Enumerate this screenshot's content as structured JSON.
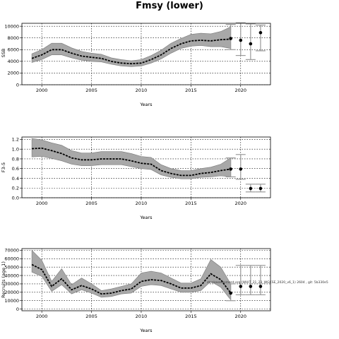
{
  "title": "Fmsy (lower)",
  "annotation": "stockassessment.org  (WHIT_21_23_WGCSE_2020_v6_1)  2604 , git: 5b330e5",
  "chart_data": [
    {
      "type": "line",
      "xlabel": "Years",
      "ylabel": "SSB",
      "xlim": [
        1998,
        2023
      ],
      "ylim": [
        0,
        10500
      ],
      "xticks": [
        2000,
        2005,
        2010,
        2015,
        2020
      ],
      "yticks": [
        0,
        2000,
        4000,
        6000,
        8000,
        10000
      ],
      "grid": true,
      "series": [
        {
          "x": [
            1999,
            2000,
            2001,
            2002,
            2003,
            2004,
            2005,
            2006,
            2007,
            2008,
            2009,
            2010,
            2011,
            2012,
            2013,
            2014,
            2015,
            2016,
            2017,
            2018,
            2019
          ],
          "values": [
            4500,
            5100,
            6000,
            6000,
            5400,
            4900,
            4700,
            4500,
            4000,
            3700,
            3600,
            3700,
            4300,
            5100,
            6200,
            7000,
            7500,
            7600,
            7500,
            7700,
            7800
          ],
          "lower": [
            3800,
            4300,
            5100,
            5100,
            4600,
            4200,
            4000,
            3900,
            3500,
            3200,
            3100,
            3200,
            3700,
            4400,
            5400,
            6200,
            6600,
            6700,
            6500,
            6500,
            6200
          ],
          "upper": [
            5300,
            6000,
            7100,
            7100,
            6300,
            5700,
            5400,
            5200,
            4600,
            4300,
            4100,
            4300,
            5000,
            5900,
            7100,
            7900,
            8600,
            8800,
            8700,
            9100,
            9900
          ]
        }
      ],
      "forecast": [
        {
          "x": 2019,
          "value": 7900,
          "lower": 6000,
          "upper": 10300
        },
        {
          "x": 2020,
          "value": 7600,
          "lower": 5000,
          "upper": 10600
        },
        {
          "x": 2021,
          "value": 7000,
          "lower": 4300,
          "upper": 10400
        },
        {
          "x": 2022,
          "value": 8900,
          "lower": 5800,
          "upper": 10200
        }
      ]
    },
    {
      "type": "line",
      "xlabel": "Years",
      "ylabel": "F3-5",
      "xlim": [
        1998,
        2023
      ],
      "ylim": [
        0,
        1.25
      ],
      "xticks": [
        2000,
        2005,
        2010,
        2015,
        2020
      ],
      "yticks": [
        0.0,
        0.2,
        0.4,
        0.6,
        0.8,
        1.0,
        1.2
      ],
      "tick_labels_y": [
        "0.0",
        "0.2",
        "0.4",
        "0.6",
        "0.8",
        "1.0",
        "1.2"
      ],
      "grid": true,
      "series": [
        {
          "x": [
            1999,
            2000,
            2001,
            2002,
            2003,
            2004,
            2005,
            2006,
            2007,
            2008,
            2009,
            2010,
            2011,
            2012,
            2013,
            2014,
            2015,
            2016,
            2017,
            2018,
            2019
          ],
          "values": [
            1.01,
            1.02,
            0.97,
            0.91,
            0.82,
            0.78,
            0.78,
            0.8,
            0.8,
            0.8,
            0.76,
            0.71,
            0.69,
            0.56,
            0.5,
            0.46,
            0.46,
            0.5,
            0.52,
            0.56,
            0.59
          ],
          "lower": [
            0.84,
            0.85,
            0.81,
            0.76,
            0.69,
            0.66,
            0.66,
            0.68,
            0.68,
            0.68,
            0.64,
            0.6,
            0.58,
            0.47,
            0.42,
            0.39,
            0.39,
            0.42,
            0.43,
            0.45,
            0.43
          ],
          "upper": [
            1.22,
            1.19,
            1.13,
            1.08,
            0.97,
            0.92,
            0.92,
            0.95,
            0.95,
            0.95,
            0.91,
            0.85,
            0.83,
            0.68,
            0.6,
            0.56,
            0.56,
            0.6,
            0.63,
            0.69,
            0.82
          ]
        }
      ],
      "forecast": [
        {
          "x": 2019,
          "value": 0.59,
          "lower": 0.43,
          "upper": 0.82
        },
        {
          "x": 2020,
          "value": 0.59,
          "lower": 0.38,
          "upper": 0.89
        },
        {
          "x": 2021,
          "value": 0.19,
          "lower": 0.12,
          "upper": 0.28
        },
        {
          "x": 2022,
          "value": 0.19,
          "lower": 0.12,
          "upper": 0.28
        }
      ]
    },
    {
      "type": "line",
      "xlabel": "Years",
      "ylabel": "Recruits (age 1)",
      "xlim": [
        1998,
        2023
      ],
      "ylim": [
        -2000,
        72000
      ],
      "xticks": [
        2000,
        2005,
        2010,
        2015,
        2020
      ],
      "yticks": [
        0,
        10000,
        20000,
        30000,
        40000,
        50000,
        60000,
        70000
      ],
      "grid": true,
      "series": [
        {
          "x": [
            1999,
            2000,
            2001,
            2002,
            2003,
            2004,
            2005,
            2006,
            2007,
            2008,
            2009,
            2010,
            2011,
            2012,
            2013,
            2014,
            2015,
            2016,
            2017,
            2018,
            2019
          ],
          "values": [
            53000,
            47000,
            27000,
            36000,
            23000,
            28000,
            24000,
            18000,
            19000,
            22000,
            24000,
            33000,
            35000,
            34000,
            30000,
            25000,
            25000,
            28000,
            42000,
            35000,
            19000
          ],
          "lower": [
            44000,
            39000,
            21000,
            29000,
            18000,
            23000,
            19000,
            14000,
            15000,
            18000,
            19000,
            27000,
            29000,
            28000,
            24000,
            20000,
            20000,
            22000,
            33000,
            26000,
            11000
          ],
          "upper": [
            70000,
            58000,
            33000,
            48000,
            29000,
            37000,
            30000,
            22000,
            24000,
            27000,
            30000,
            43000,
            45000,
            43000,
            37000,
            31000,
            31000,
            36000,
            59000,
            50000,
            30000
          ]
        }
      ],
      "forecast": [
        {
          "x": 2019,
          "value": 19000,
          "lower": 10000,
          "upper": 30000
        },
        {
          "x": 2020,
          "value": 27000,
          "lower": 17000,
          "upper": 52000
        },
        {
          "x": 2021,
          "value": 27000,
          "lower": 17000,
          "upper": 52000
        },
        {
          "x": 2022,
          "value": 27000,
          "lower": 17000,
          "upper": 52000
        }
      ]
    }
  ]
}
